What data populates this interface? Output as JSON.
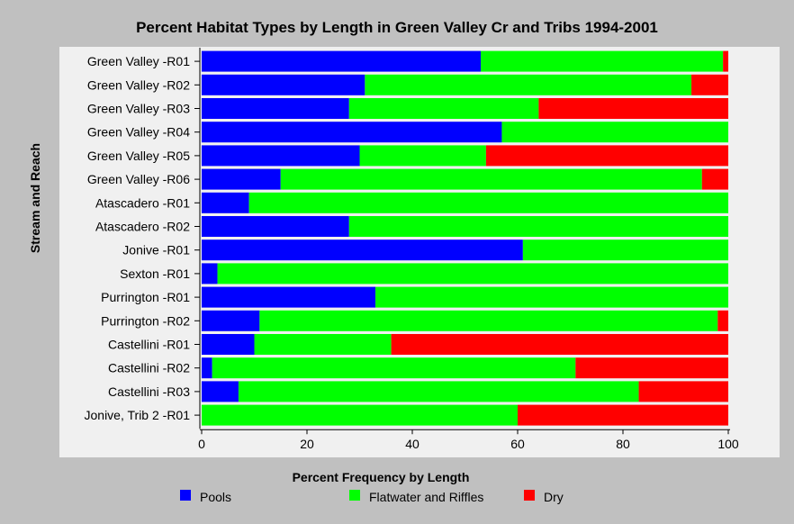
{
  "chart_data": {
    "type": "bar",
    "orientation": "horizontal",
    "stacked": true,
    "title": "Percent Habitat Types by Length in Green Valley Cr and Tribs 1994-2001",
    "xlabel": "Percent Frequency by Length",
    "ylabel": "Stream and Reach",
    "xlim": [
      0,
      100
    ],
    "xticks": [
      0,
      20,
      40,
      60,
      80,
      100
    ],
    "grid": false,
    "legend_position": "bottom",
    "categories": [
      "Green Valley -R01",
      "Green Valley -R02",
      "Green Valley -R03",
      "Green Valley -R04",
      "Green Valley -R05",
      "Green Valley -R06",
      "Atascadero -R01",
      "Atascadero -R02",
      "Jonive -R01",
      "Sexton -R01",
      "Purrington -R01",
      "Purrington -R02",
      "Castellini -R01",
      "Castellini -R02",
      "Castellini -R03",
      "Jonive, Trib 2 -R01"
    ],
    "series": [
      {
        "name": "Pools",
        "color": "#0000ff",
        "values": [
          53,
          31,
          28,
          57,
          30,
          15,
          9,
          28,
          61,
          3,
          33,
          11,
          10,
          2,
          7,
          0
        ]
      },
      {
        "name": "Flatwater and Riffles",
        "color": "#00ff00",
        "values": [
          46,
          62,
          36,
          43,
          24,
          80,
          91,
          72,
          39,
          97,
          67,
          87,
          26,
          69,
          76,
          60
        ]
      },
      {
        "name": "Dry",
        "color": "#ff0000",
        "values": [
          1,
          7,
          36,
          0,
          46,
          5,
          0,
          0,
          0,
          0,
          0,
          2,
          64,
          29,
          17,
          40
        ]
      }
    ]
  },
  "colors": {
    "background": "#c0c0c0",
    "plot_background": "#f0f0f0"
  }
}
